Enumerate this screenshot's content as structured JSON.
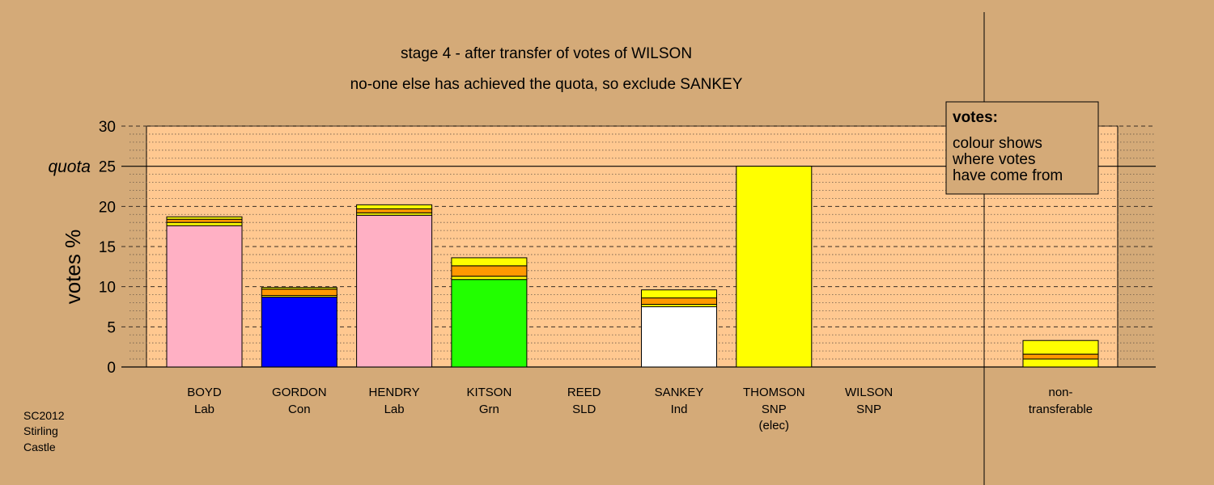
{
  "chart_data": {
    "type": "bar",
    "stacked": true,
    "title": "stage 4 - after transfer of votes of WILSON",
    "subtitle": "no-one else has achieved the quota, so exclude SANKEY",
    "ylabel": "votes %",
    "ylim": [
      0,
      30
    ],
    "yticks": [
      "0",
      "5",
      "10",
      "15",
      "20",
      "25",
      "30"
    ],
    "quota": {
      "label": "quota",
      "value": 25
    },
    "grid": true,
    "legend": {
      "placement": "top-right",
      "heading": "votes:",
      "lines": [
        "colour shows",
        "where votes",
        "have come from"
      ]
    },
    "source_note": [
      "SC2012",
      "Stirling",
      "Castle"
    ],
    "candidates": [
      {
        "name": "BOYD",
        "party": "Lab",
        "segments": [
          {
            "value": 17.6,
            "color": "#ffb0c4"
          },
          {
            "value": 0.4,
            "color": "#ffff00"
          },
          {
            "value": 0.4,
            "color": "#ff9900"
          },
          {
            "value": 0.3,
            "color": "#ffff00"
          }
        ]
      },
      {
        "name": "GORDON",
        "party": "Con",
        "segments": [
          {
            "value": 8.7,
            "color": "#0000ff"
          },
          {
            "value": 0.2,
            "color": "#ffff00"
          },
          {
            "value": 0.8,
            "color": "#ff9900"
          },
          {
            "value": 0.2,
            "color": "#ffff00"
          }
        ]
      },
      {
        "name": "HENDRY",
        "party": "Lab",
        "segments": [
          {
            "value": 18.9,
            "color": "#ffb0c4"
          },
          {
            "value": 0.3,
            "color": "#ffff00"
          },
          {
            "value": 0.5,
            "color": "#ff9900"
          },
          {
            "value": 0.5,
            "color": "#ffff00"
          }
        ]
      },
      {
        "name": "KITSON",
        "party": "Grn",
        "segments": [
          {
            "value": 10.9,
            "color": "#22ff00"
          },
          {
            "value": 0.4,
            "color": "#ffff00"
          },
          {
            "value": 1.3,
            "color": "#ff9900"
          },
          {
            "value": 1.0,
            "color": "#ffff00"
          }
        ]
      },
      {
        "name": "REED",
        "party": "SLD",
        "segments": []
      },
      {
        "name": "SANKEY",
        "party": "Ind",
        "segments": [
          {
            "value": 7.5,
            "color": "#ffffff"
          },
          {
            "value": 0.3,
            "color": "#ffff00"
          },
          {
            "value": 0.8,
            "color": "#ff9900"
          },
          {
            "value": 1.0,
            "color": "#ffff00"
          }
        ]
      },
      {
        "name": "THOMSON",
        "party": "SNP",
        "note": "(elec)",
        "segments": [
          {
            "value": 25.0,
            "color": "#ffff00"
          }
        ]
      },
      {
        "name": "WILSON",
        "party": "SNP",
        "segments": []
      }
    ],
    "nontransferable": {
      "label_lines": [
        "non-",
        "transferable"
      ],
      "segments": [
        {
          "value": 1.0,
          "color": "#ffff00"
        },
        {
          "value": 0.6,
          "color": "#ff9900"
        },
        {
          "value": 1.7,
          "color": "#ffff00"
        }
      ]
    }
  }
}
